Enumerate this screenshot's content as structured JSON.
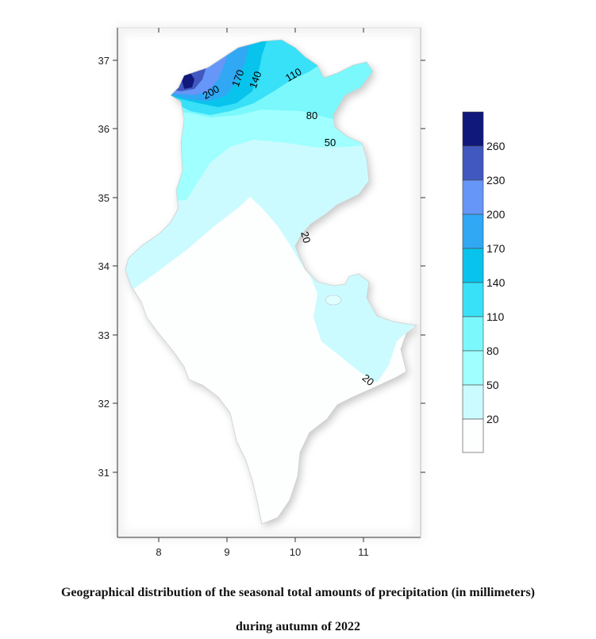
{
  "map": {
    "x_ticks": [
      "8",
      "9",
      "10",
      "11"
    ],
    "y_ticks": [
      "37",
      "36",
      "35",
      "34",
      "33",
      "32",
      "31"
    ],
    "contour_labels": [
      "200",
      "170",
      "140",
      "110",
      "80",
      "50",
      "20",
      "20"
    ]
  },
  "legend": {
    "levels": [
      "260",
      "230",
      "200",
      "170",
      "140",
      "110",
      "80",
      "50",
      "20"
    ],
    "colors": [
      "#fdffff",
      "#ccfbff",
      "#a0ffff",
      "#7af8fc",
      "#38e0f8",
      "#08c4ec",
      "#30a8f4",
      "#6696f8",
      "#4058c0",
      "#10187c"
    ]
  },
  "caption": {
    "line1": "Geographical distribution  of the seasonal total amounts of precipitation  (in millimeters)",
    "line2": "during  autumn  of 2022"
  }
}
